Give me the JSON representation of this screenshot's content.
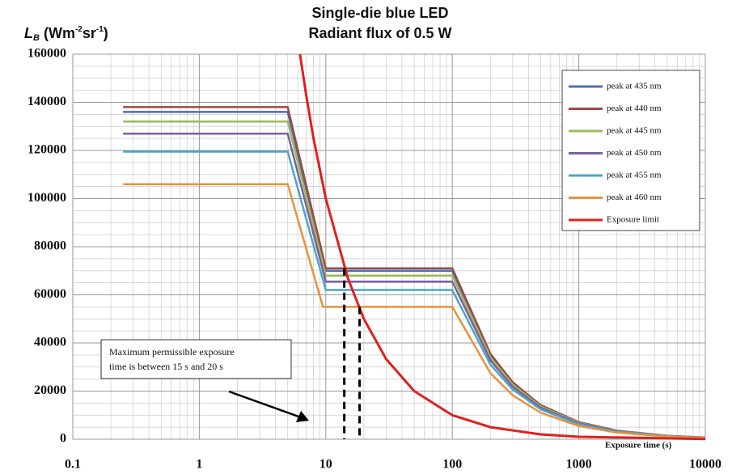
{
  "chart_data": {
    "type": "line",
    "title": "Single-die blue LED",
    "subtitle": "Radiant flux of 0.5 W",
    "ylabel": [
      "L",
      "B",
      " (Wm",
      "-2",
      "sr",
      "-1",
      ")"
    ],
    "xlabel": "Exposure time (s)",
    "annotation": [
      "Maximum permissible exposure",
      "time is between 15 s and 20 s"
    ],
    "xscale": "log",
    "xlim": [
      0.1,
      10000
    ],
    "xticks": [
      0.1,
      1,
      10,
      100,
      1000,
      10000
    ],
    "ylim": [
      0,
      160000
    ],
    "yticks": [
      0,
      20000,
      40000,
      60000,
      80000,
      100000,
      120000,
      140000,
      160000
    ],
    "grid": true,
    "legend": "upper right",
    "series": [
      {
        "name": "peak at 435 nm",
        "color": "#4a6fb5",
        "x": [
          0.25,
          5,
          10,
          100,
          200,
          300,
          500,
          1000,
          2000,
          5000,
          10000
        ],
        "values": [
          136000,
          136000,
          70000,
          70000,
          35000,
          23300,
          14000,
          7000,
          3500,
          1400,
          700
        ]
      },
      {
        "name": "peak at 440 nm",
        "color": "#9b4a48",
        "x": [
          0.25,
          5,
          10,
          100,
          200,
          300,
          500,
          1000,
          2000,
          5000,
          10000
        ],
        "values": [
          138000,
          138000,
          71000,
          71000,
          35500,
          23700,
          14200,
          7100,
          3550,
          1420,
          710
        ]
      },
      {
        "name": "peak at 445 nm",
        "color": "#98bb59",
        "x": [
          0.25,
          5,
          10,
          100,
          200,
          300,
          500,
          1000,
          2000,
          5000,
          10000
        ],
        "values": [
          132000,
          132000,
          68000,
          68000,
          34000,
          22700,
          13600,
          6800,
          3400,
          1360,
          680
        ]
      },
      {
        "name": "peak at 450 nm",
        "color": "#7d5fa0",
        "x": [
          0.25,
          5,
          10,
          100,
          200,
          300,
          500,
          1000,
          2000,
          5000,
          10000
        ],
        "values": [
          127000,
          127000,
          65500,
          65500,
          32750,
          21800,
          13100,
          6550,
          3280,
          1310,
          655
        ]
      },
      {
        "name": "peak at 455 nm",
        "color": "#4aa6c8",
        "x": [
          0.25,
          5,
          10,
          100,
          200,
          300,
          500,
          1000,
          2000,
          5000,
          10000
        ],
        "values": [
          119500,
          119500,
          62000,
          62000,
          31000,
          20700,
          12400,
          6200,
          3100,
          1240,
          620
        ]
      },
      {
        "name": "peak at 460 nm",
        "color": "#e8923b",
        "x": [
          0.25,
          5,
          9.5,
          100,
          200,
          300,
          500,
          1000,
          2000,
          5000,
          10000
        ],
        "values": [
          106000,
          106000,
          55000,
          55000,
          27500,
          18300,
          11000,
          5500,
          2750,
          1100,
          550
        ]
      },
      {
        "name": "Exposure limit",
        "color": "#e0201f",
        "x": [
          6.25,
          7,
          8,
          10,
          15,
          20,
          30,
          50,
          100,
          200,
          500,
          1000,
          10000
        ],
        "values": [
          160000,
          142900,
          125000,
          100000,
          66700,
          50000,
          33300,
          20000,
          10000,
          5000,
          2000,
          1000,
          100
        ]
      }
    ],
    "reference_lines": [
      {
        "x": 14,
        "y": 71000
      },
      {
        "x": 18.5,
        "y": 55000
      }
    ]
  }
}
